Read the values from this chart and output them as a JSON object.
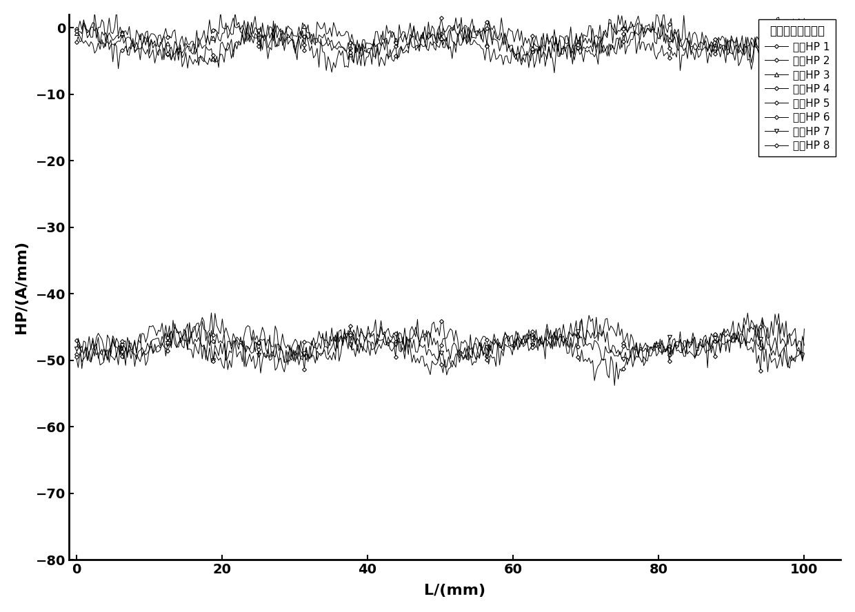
{
  "title": "",
  "xlabel": "L/(mm)",
  "ylabel": "HP/(A/mm)",
  "xlim": [
    -1,
    105
  ],
  "ylim": [
    -80,
    2
  ],
  "yticks": [
    0,
    -10,
    -20,
    -30,
    -40,
    -50,
    -60,
    -70,
    -80
  ],
  "xticks": [
    0,
    20,
    40,
    60,
    80,
    100
  ],
  "legend_title": "退磁后磁感应强度",
  "series": [
    {
      "label": "切向HP 1",
      "mean": -2.0,
      "amp": 1.5,
      "noise_scale": 1.0
    },
    {
      "label": "法向HP 2",
      "mean": -2.8,
      "amp": 1.5,
      "noise_scale": 1.0
    },
    {
      "label": "切向HP 3",
      "mean": -1.5,
      "amp": 1.2,
      "noise_scale": 0.8
    },
    {
      "label": "法向HP 4",
      "mean": -2.3,
      "amp": 1.8,
      "noise_scale": 1.0
    },
    {
      "label": "切向HP 5",
      "mean": -47.0,
      "amp": 1.5,
      "noise_scale": 1.0
    },
    {
      "label": "法向HP 6",
      "mean": -47.5,
      "amp": 1.5,
      "noise_scale": 1.0
    },
    {
      "label": "切向HP 7",
      "mean": -48.0,
      "amp": 1.2,
      "noise_scale": 0.8
    },
    {
      "label": "法向HP 8",
      "mean": -48.5,
      "amp": 1.8,
      "noise_scale": 1.0
    }
  ],
  "marker_styles": [
    "D",
    "D",
    "^",
    "D",
    "D",
    "D",
    "v",
    "D"
  ],
  "marker_sizes": [
    3,
    3,
    4,
    3,
    3,
    3,
    4,
    3
  ],
  "line_color": "#000000",
  "bg_color": "#ffffff",
  "n_points": 400,
  "marker_every": 25
}
